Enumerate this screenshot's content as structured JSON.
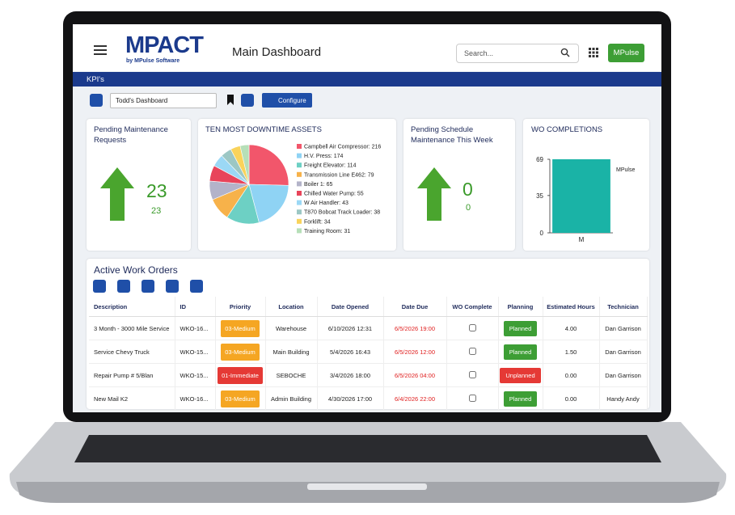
{
  "header": {
    "logo": "MPACT",
    "logo_sub": "by MPulse Software",
    "title": "Main Dashboard",
    "search_placeholder": "Search...",
    "user_button": "MPulse"
  },
  "kpi_bar": {
    "title": "KPI's"
  },
  "toolbar": {
    "dashboard_select": "Todd's Dashboard",
    "configure": "Configure"
  },
  "widgets": {
    "pending_maintenance": {
      "title": "Pending Maintenance Requests",
      "value": 23,
      "sub_value": 23
    },
    "downtime": {
      "type": "pie",
      "title": "TEN MOST DOWNTIME ASSETS",
      "categories": [
        "Campbell Air Compressor",
        "H.V. Press",
        "Freight Elevator",
        "Transmission Line E462",
        "Boiler 1",
        "Chilled Water Pump",
        "W Air Handler",
        "T870 Bobcat Track Loader",
        "Forklift",
        "Training Room"
      ],
      "legend_labels": [
        "Campbell Air Compressor: 216",
        "H.V. Press: 174",
        "Freight Elevator: 114",
        "Transmission Line E462: 79",
        "Boiler 1: 65",
        "Chilled Water Pump: 55",
        "W Air Handler: 43",
        "T870 Bobcat Track Loader: 38",
        "Forklift: 34",
        "Training Room: 31"
      ],
      "values": [
        216,
        174,
        114,
        79,
        65,
        55,
        43,
        38,
        34,
        31
      ],
      "colors": [
        "#f2566b",
        "#8fd3f4",
        "#6dd0c4",
        "#f7b24a",
        "#b3b3c9",
        "#e8445a",
        "#9bd8f5",
        "#9cc7c4",
        "#f9d35b",
        "#b6dfb8"
      ]
    },
    "pending_schedule": {
      "title": "Pending Schedule Maintenance This Week",
      "value": 0,
      "sub_value": 0
    },
    "completions": {
      "type": "bar",
      "title": "WO COMPLETIONS",
      "categories": [
        "M"
      ],
      "series": [
        {
          "name": "MPulse",
          "color": "#1ab3a6",
          "values": [
            69
          ]
        }
      ],
      "ylim": [
        0,
        69
      ],
      "yticks": [
        0,
        35,
        69
      ]
    }
  },
  "work_orders": {
    "title": "Active Work Orders",
    "columns": [
      "Description",
      "ID",
      "Priority",
      "Location",
      "Date Opened",
      "Date Due",
      "WO Complete",
      "Planning",
      "Estimated Hours",
      "Technician"
    ],
    "rows": [
      [
        "3 Month - 3000 Mile Service",
        "WKO-16...",
        "03-Medium",
        "Warehouse",
        "6/10/2026 12:31",
        "6/5/2026 19:00",
        false,
        "Planned",
        "4.00",
        "Dan Garrison"
      ],
      [
        "Service Chevy Truck",
        "WKO-15...",
        "03-Medium",
        "Main Building",
        "5/4/2026 16:43",
        "6/5/2026 12:00",
        false,
        "Planned",
        "1.50",
        "Dan Garrison"
      ],
      [
        "Repair Pump # 5/Blan",
        "WKO-15...",
        "01-Immediate",
        "SEBOCHE",
        "3/4/2026 18:00",
        "6/5/2026 04:00",
        false,
        "Unplanned",
        "0.00",
        "Dan Garrison"
      ],
      [
        "New Mail K2",
        "WKO-16...",
        "03-Medium",
        "Admin Building",
        "4/30/2026 17:00",
        "6/4/2026 22:00",
        false,
        "Planned",
        "0.00",
        "Handy Andy"
      ]
    ],
    "row_styles": [
      {
        "priority_color": "#f5a623",
        "planning_color": "#3d9e35"
      },
      {
        "priority_color": "#f5a623",
        "planning_color": "#3d9e35"
      },
      {
        "priority_color": "#e53935",
        "planning_color": "#e53935"
      },
      {
        "priority_color": "#f5a623",
        "planning_color": "#3d9e35"
      }
    ],
    "due_color": "#e02020"
  }
}
